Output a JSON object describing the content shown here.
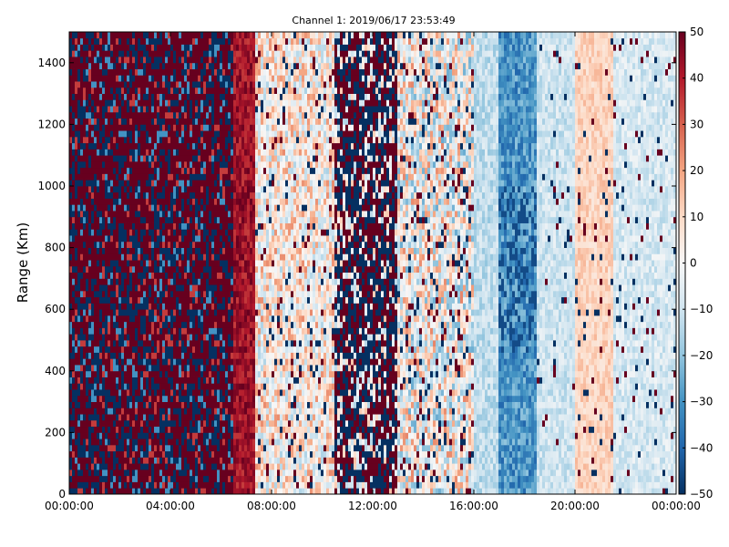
{
  "chart_data": {
    "type": "heatmap",
    "title": "Channel 1: 2019/06/17 23:53:49",
    "xlabel": "",
    "ylabel": "Range (Km)",
    "x_ticks": [
      "00:00:00",
      "04:00:00",
      "08:00:00",
      "12:00:00",
      "16:00:00",
      "20:00:00",
      "00:00:00"
    ],
    "y_ticks": [
      0,
      200,
      400,
      600,
      800,
      1000,
      1200,
      1400
    ],
    "ylim": [
      0,
      1500
    ],
    "xlim_hours": [
      0,
      24
    ],
    "colorbar": {
      "ticks": [
        50,
        40,
        30,
        20,
        10,
        0,
        -10,
        -20,
        -30,
        -40,
        -50
      ],
      "range": [
        -50,
        50
      ],
      "colormap": "RdBu_r"
    },
    "grid": false
  },
  "colors": {
    "high": "#67001f",
    "mid": "#f7f7f7",
    "low": "#053061"
  }
}
